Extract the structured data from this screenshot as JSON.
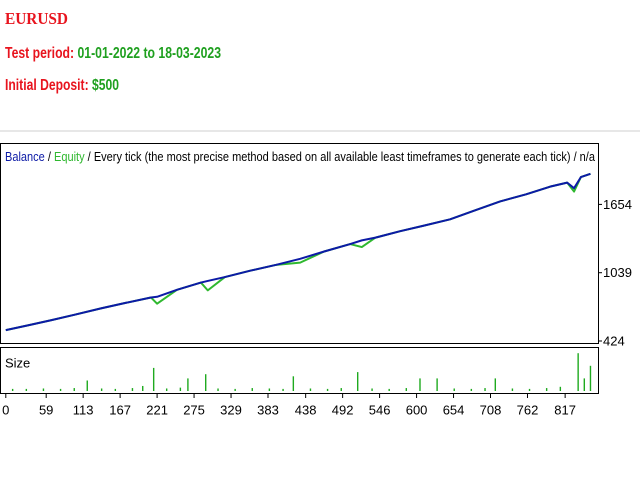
{
  "title": "EURUSD",
  "test_period": {
    "label": "Test period:",
    "value": "01-01-2022 to 18-03-2023"
  },
  "initial_deposit": {
    "label": "Initial Deposit:",
    "value": "$500"
  },
  "chart_data": [
    {
      "type": "line",
      "separator": "/",
      "subtitle": "Every tick (the most precise method based on all available least timeframes to generate each tick) / n/a",
      "x": [
        0,
        33,
        66,
        100,
        139,
        175,
        212,
        221,
        250,
        285,
        295,
        320,
        357,
        395,
        430,
        465,
        503,
        520,
        540,
        576,
        610,
        649,
        685,
        722,
        760,
        795,
        820,
        830,
        840,
        854
      ],
      "series": [
        {
          "name": "Balance",
          "color": "#0c1aa6",
          "values": [
            522,
            566,
            611,
            660,
            718,
            767,
            816,
            822,
            885,
            950,
            965,
            1000,
            1057,
            1110,
            1164,
            1230,
            1297,
            1330,
            1355,
            1413,
            1462,
            1520,
            1600,
            1681,
            1745,
            1814,
            1850,
            1800,
            1900,
            1930
          ]
        },
        {
          "name": "Equity",
          "color": "#2fb82f",
          "values": [
            522,
            566,
            611,
            660,
            718,
            767,
            816,
            760,
            885,
            950,
            880,
            1000,
            1057,
            1110,
            1130,
            1230,
            1297,
            1270,
            1355,
            1413,
            1462,
            1520,
            1600,
            1681,
            1745,
            1814,
            1850,
            1770,
            1900,
            1930
          ]
        }
      ],
      "xlim": [
        -7,
        865
      ],
      "ylim": [
        406,
        2189
      ],
      "yticks": [
        424,
        1039,
        1654
      ]
    },
    {
      "type": "bar",
      "title": "Size",
      "color": "#1faa1f",
      "x": [
        10,
        30,
        55,
        80,
        100,
        119,
        140,
        160,
        185,
        200,
        216,
        235,
        255,
        266,
        292,
        310,
        335,
        360,
        385,
        405,
        420,
        445,
        470,
        490,
        514,
        535,
        560,
        585,
        605,
        630,
        655,
        680,
        700,
        715,
        740,
        765,
        790,
        810,
        836,
        845,
        854
      ],
      "values": [
        0.05,
        0.05,
        0.06,
        0.05,
        0.07,
        0.25,
        0.06,
        0.05,
        0.07,
        0.12,
        0.55,
        0.06,
        0.08,
        0.3,
        0.4,
        0.06,
        0.05,
        0.07,
        0.06,
        0.05,
        0.35,
        0.06,
        0.05,
        0.07,
        0.45,
        0.06,
        0.05,
        0.07,
        0.3,
        0.3,
        0.06,
        0.05,
        0.07,
        0.3,
        0.06,
        0.05,
        0.07,
        0.1,
        0.9,
        0.3,
        0.6
      ],
      "xlim": [
        -7,
        865
      ],
      "ylim": [
        0,
        1
      ],
      "xticks": [
        0,
        59,
        113,
        167,
        221,
        275,
        329,
        383,
        438,
        492,
        546,
        600,
        654,
        708,
        762,
        817
      ]
    }
  ]
}
